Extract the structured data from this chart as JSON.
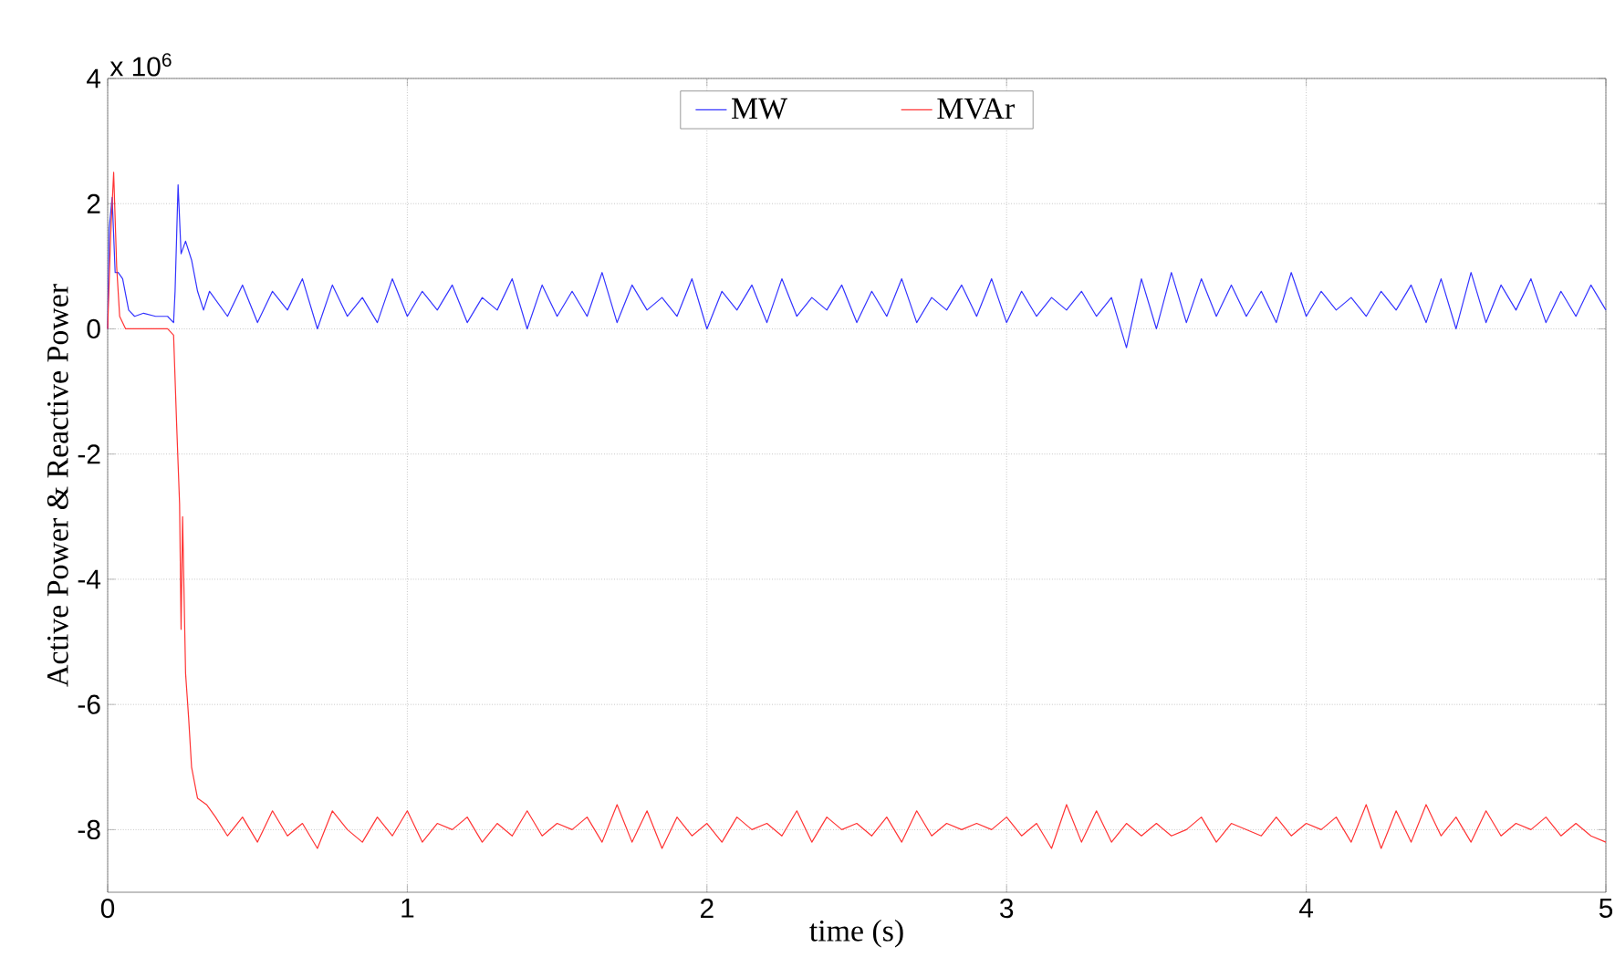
{
  "chart_data": {
    "type": "line",
    "xlabel": "time (s)",
    "ylabel": "Active Power & Reactive Power",
    "annotations": [
      "x 10$^{6}$"
    ],
    "xlim": [
      0,
      5
    ],
    "ylim": [
      -9,
      4
    ],
    "xticks": [
      0,
      1,
      2,
      3,
      4,
      5
    ],
    "yticks": [
      -8,
      -6,
      -4,
      -2,
      0,
      2,
      4
    ],
    "grid": true,
    "legend": "top",
    "series": [
      {
        "name": "MW",
        "color": "#3333ff",
        "x": [
          0,
          0.005,
          0.015,
          0.025,
          0.035,
          0.05,
          0.07,
          0.09,
          0.12,
          0.16,
          0.2,
          0.22,
          0.225,
          0.235,
          0.245,
          0.26,
          0.28,
          0.3,
          0.32,
          0.34,
          0.4,
          0.45,
          0.5,
          0.55,
          0.6,
          0.65,
          0.7,
          0.75,
          0.8,
          0.85,
          0.9,
          0.95,
          1.0,
          1.05,
          1.1,
          1.15,
          1.2,
          1.25,
          1.3,
          1.35,
          1.4,
          1.45,
          1.5,
          1.55,
          1.6,
          1.65,
          1.7,
          1.75,
          1.8,
          1.85,
          1.9,
          1.95,
          2.0,
          2.05,
          2.1,
          2.15,
          2.2,
          2.25,
          2.3,
          2.35,
          2.4,
          2.45,
          2.5,
          2.55,
          2.6,
          2.65,
          2.7,
          2.75,
          2.8,
          2.85,
          2.9,
          2.95,
          3.0,
          3.05,
          3.1,
          3.15,
          3.2,
          3.25,
          3.3,
          3.35,
          3.4,
          3.45,
          3.5,
          3.55,
          3.6,
          3.65,
          3.7,
          3.75,
          3.8,
          3.85,
          3.9,
          3.95,
          4.0,
          4.05,
          4.1,
          4.15,
          4.2,
          4.25,
          4.3,
          4.35,
          4.4,
          4.45,
          4.5,
          4.55,
          4.6,
          4.65,
          4.7,
          4.75,
          4.8,
          4.85,
          4.9,
          4.95,
          5.0
        ],
        "values": [
          0,
          1.6,
          2.1,
          0.9,
          0.9,
          0.8,
          0.3,
          0.2,
          0.25,
          0.2,
          0.2,
          0.1,
          0.6,
          2.3,
          1.2,
          1.4,
          1.1,
          0.6,
          0.3,
          0.6,
          0.2,
          0.7,
          0.1,
          0.6,
          0.3,
          0.8,
          0.0,
          0.7,
          0.2,
          0.5,
          0.1,
          0.8,
          0.2,
          0.6,
          0.3,
          0.7,
          0.1,
          0.5,
          0.3,
          0.8,
          0.0,
          0.7,
          0.2,
          0.6,
          0.2,
          0.9,
          0.1,
          0.7,
          0.3,
          0.5,
          0.2,
          0.8,
          0.0,
          0.6,
          0.3,
          0.7,
          0.1,
          0.8,
          0.2,
          0.5,
          0.3,
          0.7,
          0.1,
          0.6,
          0.2,
          0.8,
          0.1,
          0.5,
          0.3,
          0.7,
          0.2,
          0.8,
          0.1,
          0.6,
          0.2,
          0.5,
          0.3,
          0.6,
          0.2,
          0.5,
          -0.3,
          0.8,
          0.0,
          0.9,
          0.1,
          0.8,
          0.2,
          0.7,
          0.2,
          0.6,
          0.1,
          0.9,
          0.2,
          0.6,
          0.3,
          0.5,
          0.2,
          0.6,
          0.3,
          0.7,
          0.1,
          0.8,
          0.0,
          0.9,
          0.1,
          0.7,
          0.3,
          0.8,
          0.1,
          0.6,
          0.2,
          0.7,
          0.3
        ]
      },
      {
        "name": "MVAr",
        "color": "#ff3333",
        "x": [
          0,
          0.01,
          0.02,
          0.03,
          0.04,
          0.06,
          0.1,
          0.15,
          0.2,
          0.22,
          0.23,
          0.24,
          0.245,
          0.25,
          0.26,
          0.27,
          0.28,
          0.3,
          0.33,
          0.36,
          0.4,
          0.45,
          0.5,
          0.55,
          0.6,
          0.65,
          0.7,
          0.75,
          0.8,
          0.85,
          0.9,
          0.95,
          1.0,
          1.05,
          1.1,
          1.15,
          1.2,
          1.25,
          1.3,
          1.35,
          1.4,
          1.45,
          1.5,
          1.55,
          1.6,
          1.65,
          1.7,
          1.75,
          1.8,
          1.85,
          1.9,
          1.95,
          2.0,
          2.05,
          2.1,
          2.15,
          2.2,
          2.25,
          2.3,
          2.35,
          2.4,
          2.45,
          2.5,
          2.55,
          2.6,
          2.65,
          2.7,
          2.75,
          2.8,
          2.85,
          2.9,
          2.95,
          3.0,
          3.05,
          3.1,
          3.15,
          3.2,
          3.25,
          3.3,
          3.35,
          3.4,
          3.45,
          3.5,
          3.55,
          3.6,
          3.65,
          3.7,
          3.75,
          3.8,
          3.85,
          3.9,
          3.95,
          4.0,
          4.05,
          4.1,
          4.15,
          4.2,
          4.25,
          4.3,
          4.35,
          4.4,
          4.45,
          4.5,
          4.55,
          4.6,
          4.65,
          4.7,
          4.75,
          4.8,
          4.85,
          4.9,
          4.95,
          5.0
        ],
        "values": [
          0,
          1.5,
          2.5,
          1.0,
          0.2,
          0.0,
          0.0,
          0.0,
          0.0,
          -0.1,
          -1.5,
          -2.8,
          -4.8,
          -3.0,
          -5.5,
          -6.2,
          -7.0,
          -7.5,
          -7.6,
          -7.8,
          -8.1,
          -7.8,
          -8.2,
          -7.7,
          -8.1,
          -7.9,
          -8.3,
          -7.7,
          -8.0,
          -8.2,
          -7.8,
          -8.1,
          -7.7,
          -8.2,
          -7.9,
          -8.0,
          -7.8,
          -8.2,
          -7.9,
          -8.1,
          -7.7,
          -8.1,
          -7.9,
          -8.0,
          -7.8,
          -8.2,
          -7.6,
          -8.2,
          -7.7,
          -8.3,
          -7.8,
          -8.1,
          -7.9,
          -8.2,
          -7.8,
          -8.0,
          -7.9,
          -8.1,
          -7.7,
          -8.2,
          -7.8,
          -8.0,
          -7.9,
          -8.1,
          -7.8,
          -8.2,
          -7.7,
          -8.1,
          -7.9,
          -8.0,
          -7.9,
          -8.0,
          -7.8,
          -8.1,
          -7.9,
          -8.3,
          -7.6,
          -8.2,
          -7.7,
          -8.2,
          -7.9,
          -8.1,
          -7.9,
          -8.1,
          -8.0,
          -7.8,
          -8.2,
          -7.9,
          -8.0,
          -8.1,
          -7.8,
          -8.1,
          -7.9,
          -8.0,
          -7.8,
          -8.2,
          -7.6,
          -8.3,
          -7.7,
          -8.2,
          -7.6,
          -8.1,
          -7.8,
          -8.2,
          -7.7,
          -8.1,
          -7.9,
          -8.0,
          -7.8,
          -8.1,
          -7.9,
          -8.1,
          -8.2
        ]
      }
    ]
  }
}
